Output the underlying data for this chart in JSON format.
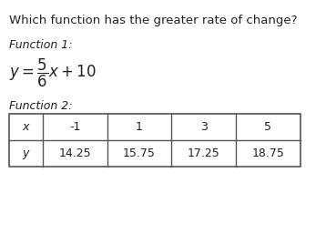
{
  "title": "Which function has the greater rate of change?",
  "func1_label": "Function 1:",
  "func1_equation": "$y = \\dfrac{5}{6}x + 10$",
  "func2_label": "Function 2:",
  "table_x_header": "x",
  "table_y_header": "y",
  "table_x_values": [
    "-1",
    "1",
    "3",
    "5"
  ],
  "table_y_values": [
    "14.25",
    "15.75",
    "17.25",
    "18.75"
  ],
  "bg_color": "#ffffff",
  "text_color": "#222222",
  "title_fontsize": 9.5,
  "label_fontsize": 9,
  "eq_fontsize": 12,
  "table_fontsize": 9
}
